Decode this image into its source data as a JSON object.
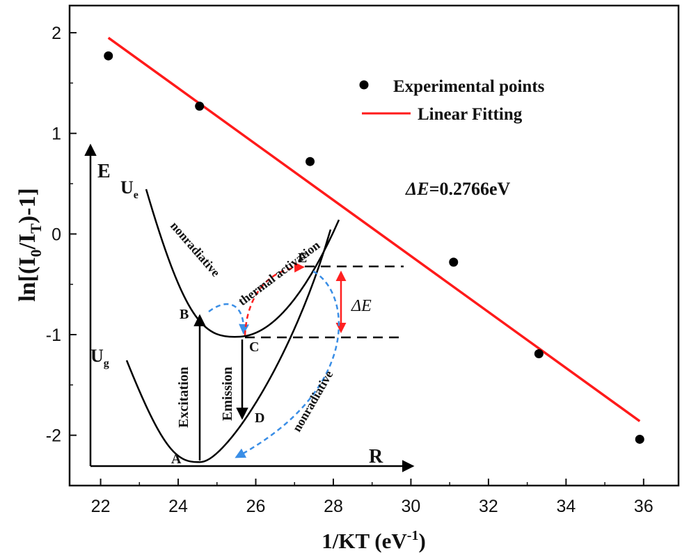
{
  "chart_data": {
    "type": "scatter",
    "xlabel": "1/KT (eV-1)",
    "ylabel": "ln[(I0/IT)-1]",
    "xlim": [
      21.2,
      36.9
    ],
    "ylim": [
      -2.5,
      2.27
    ],
    "xticks": [
      22,
      24,
      26,
      28,
      30,
      32,
      34,
      36
    ],
    "yticks": [
      2,
      1,
      0,
      -1,
      -2
    ],
    "xtick_labels": [
      "22",
      "24",
      "26",
      "28",
      "30",
      "32",
      "34",
      "36"
    ],
    "ytick_labels": [
      "2",
      "1",
      "0",
      "-1",
      "-2"
    ],
    "series": [
      {
        "name": "Experimental points",
        "kind": "scatter",
        "color": "#000000",
        "x": [
          22.2,
          24.55,
          27.4,
          31.1,
          33.3,
          35.9
        ],
        "y": [
          1.77,
          1.27,
          0.72,
          -0.28,
          -1.19,
          -2.04
        ]
      },
      {
        "name": "Linear Fitting",
        "kind": "line",
        "color": "#ff1a1a",
        "x": [
          22.2,
          35.9
        ],
        "y": [
          1.95,
          -1.86
        ]
      }
    ],
    "legend_position": "top-right",
    "annotation": "ΔE=0.2766eV"
  },
  "inset": {
    "energy_axis_label": "E",
    "coordinate_axis_label": "R",
    "upper_curve_label": "U",
    "upper_curve_subscript": "e",
    "lower_curve_label": "U",
    "lower_curve_subscript": "g",
    "point_a": "A",
    "point_b": "B",
    "point_c": "C",
    "point_d": "D",
    "point_e": "E",
    "excitation": "Excitation",
    "emission": "Emission",
    "nonradiative_1": "nonradiative",
    "nonradiative_2": "nonradiative",
    "thermal_activation": "thermal activation",
    "delta_e": "ΔE"
  },
  "colors": {
    "fit_line": "#ff1a1a",
    "thermal_arrow": "#ff2020",
    "nonradiative_arrow": "#3a8ee6",
    "ink": "#000000"
  }
}
